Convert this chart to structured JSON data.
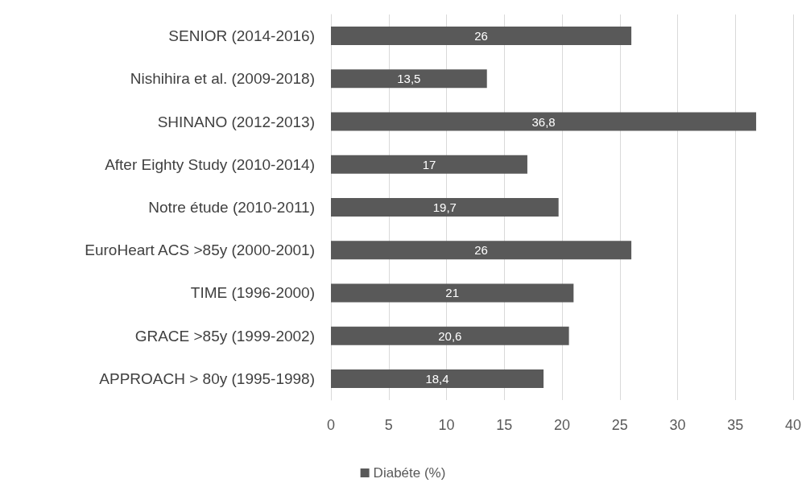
{
  "chart_data": {
    "type": "bar",
    "orientation": "horizontal",
    "categories": [
      "SENIOR (2014-2016)",
      "Nishihira et al. (2009-2018)",
      "SHINANO (2012-2013)",
      "After Eighty Study (2010-2014)",
      "Notre étude (2010-2011)",
      "EuroHeart ACS >85y (2000-2001)",
      "TIME (1996-2000)",
      "GRACE >85y (1999-2002)",
      "APPROACH > 80y (1995-1998)"
    ],
    "series": [
      {
        "name": "Diabéte (%)",
        "color": "#595959",
        "values": [
          26,
          13.5,
          36.8,
          17,
          19.7,
          26,
          21,
          20.6,
          18.4
        ],
        "value_labels": [
          "26",
          "13,5",
          "36,8",
          "17",
          "19,7",
          "26",
          "21",
          "20,6",
          "18,4"
        ]
      }
    ],
    "xlim": [
      0,
      40
    ],
    "xticks": [
      0,
      5,
      10,
      15,
      20,
      25,
      30,
      35,
      40
    ],
    "grid": "x",
    "legend": "bottom"
  }
}
